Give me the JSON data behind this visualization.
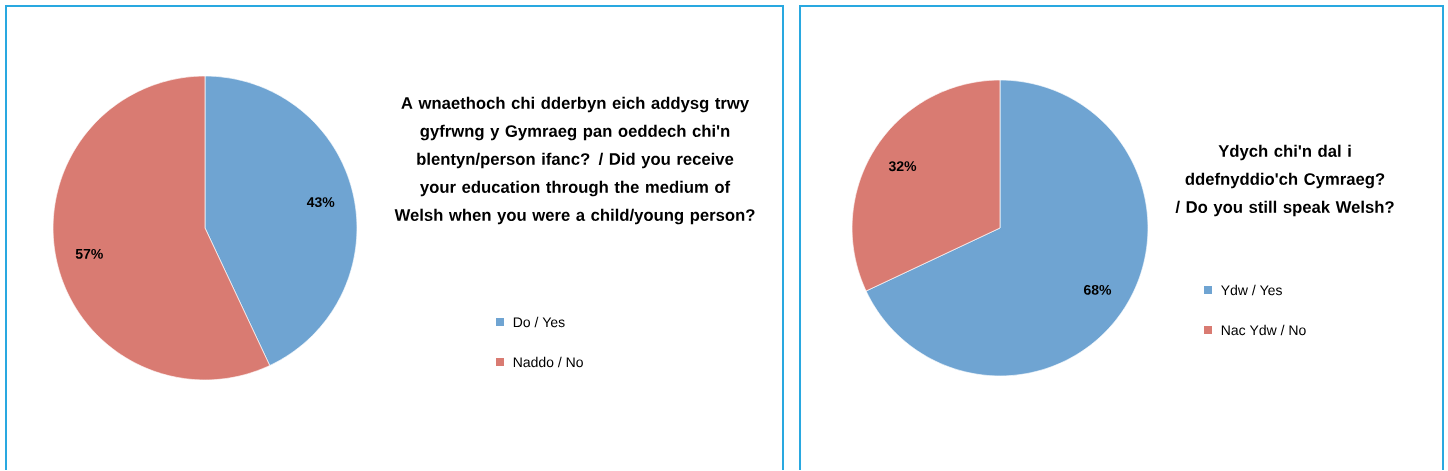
{
  "chart_data": [
    {
      "type": "pie",
      "title": "A wnaethoch chi dderbyn eich addysg trwy gyfrwng y Gymraeg pan oeddech chi'n blentyn/person ifanc? / Did you receive your education through the medium of Welsh when you were a child/young person?",
      "categories": [
        "Do / Yes",
        "Naddo / No"
      ],
      "values": [
        43,
        57
      ],
      "colors": [
        "#6fa4d2",
        "#d97b72"
      ],
      "value_labels": [
        "43%",
        "57%"
      ],
      "legend": "right"
    },
    {
      "type": "pie",
      "title": "Ydych chi'n dal i ddefnyddio'ch Cymraeg? / Do you still speak Welsh?",
      "categories": [
        "Ydw / Yes",
        "Nac Ydw / No"
      ],
      "values": [
        68,
        32
      ],
      "colors": [
        "#6fa4d2",
        "#d97b72"
      ],
      "value_labels": [
        "68%",
        "32%"
      ],
      "legend": "right"
    }
  ]
}
